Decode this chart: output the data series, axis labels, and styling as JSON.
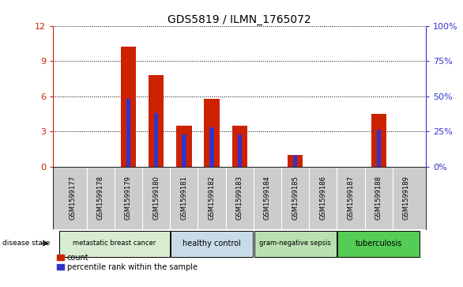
{
  "title": "GDS5819 / ILMN_1765072",
  "samples": [
    "GSM1599177",
    "GSM1599178",
    "GSM1599179",
    "GSM1599180",
    "GSM1599181",
    "GSM1599182",
    "GSM1599183",
    "GSM1599184",
    "GSM1599185",
    "GSM1599186",
    "GSM1599187",
    "GSM1599188",
    "GSM1599189"
  ],
  "counts": [
    0.0,
    0.0,
    10.2,
    7.8,
    3.5,
    5.8,
    3.5,
    0.0,
    1.0,
    0.0,
    0.0,
    4.5,
    0.0
  ],
  "percentiles": [
    null,
    null,
    48.0,
    38.0,
    23.0,
    28.0,
    23.0,
    null,
    8.0,
    null,
    null,
    26.0,
    null
  ],
  "disease_groups": [
    {
      "label": "metastatic breast cancer",
      "start": 0,
      "end": 3,
      "color": "#d8ecd0"
    },
    {
      "label": "healthy control",
      "start": 4,
      "end": 6,
      "color": "#c8dce8"
    },
    {
      "label": "gram-negative sepsis",
      "start": 7,
      "end": 9,
      "color": "#b8e0b0"
    },
    {
      "label": "tuberculosis",
      "start": 10,
      "end": 12,
      "color": "#55cc55"
    }
  ],
  "ylim_left": [
    0,
    12
  ],
  "ylim_right": [
    0,
    100
  ],
  "yticks_left": [
    0,
    3,
    6,
    9,
    12
  ],
  "yticks_right": [
    0,
    25,
    50,
    75,
    100
  ],
  "bar_color": "#cc2200",
  "percentile_color": "#3333cc",
  "bar_width": 0.55,
  "bg_color": "#ffffff",
  "plot_bg_color": "#ffffff",
  "grid_color": "#000000",
  "left_tick_color": "#cc2200",
  "right_tick_color": "#3333cc",
  "sample_bg_color": "#cccccc",
  "title_fontsize": 10
}
